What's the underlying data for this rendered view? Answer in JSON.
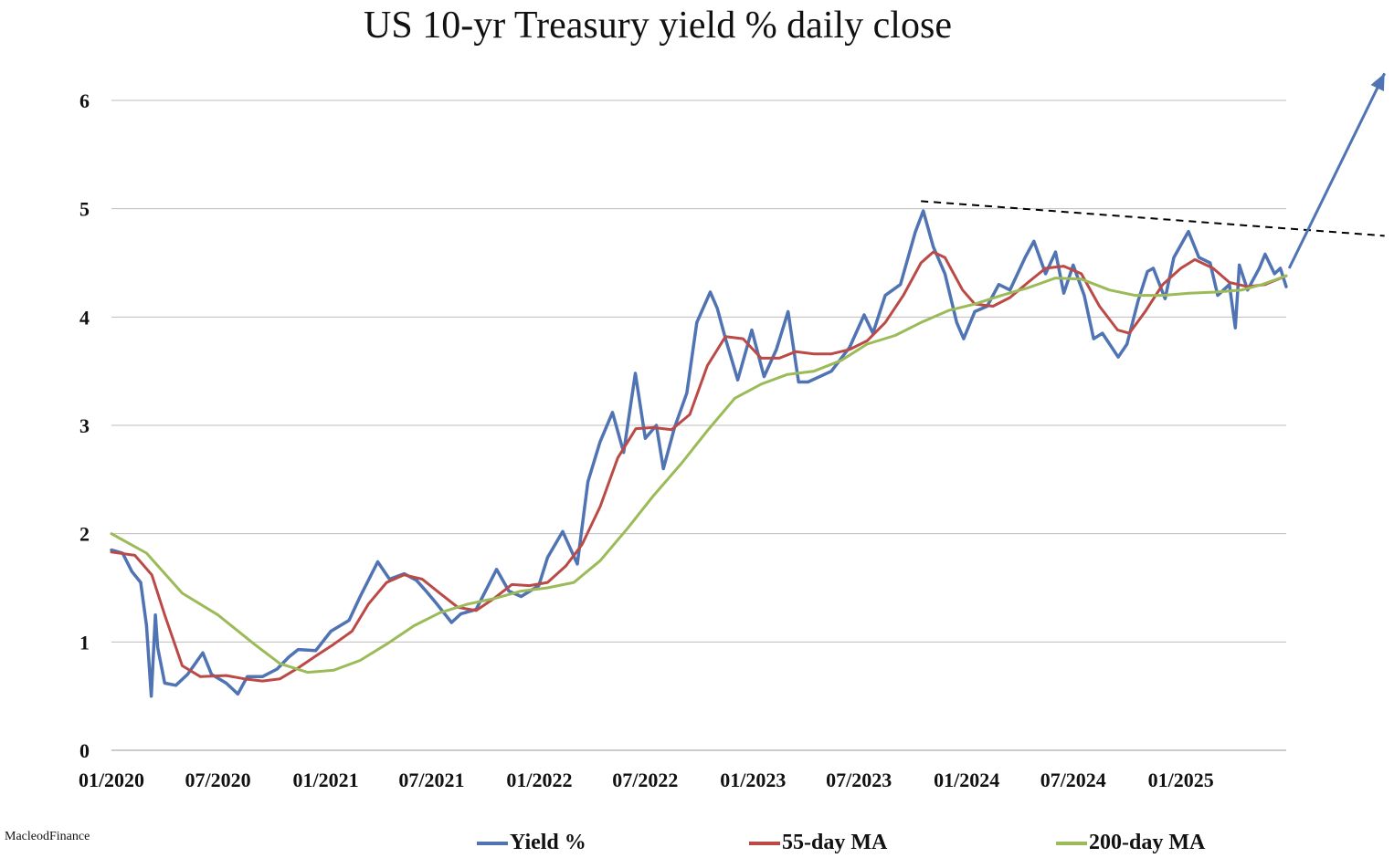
{
  "chart_data": {
    "type": "line",
    "title": "US 10-yr Treasury yield % daily close",
    "xlabel": "",
    "ylabel": "",
    "ylim": [
      0,
      6
    ],
    "yticks": [
      "0",
      "1",
      "2",
      "3",
      "4",
      "5",
      "6"
    ],
    "xticks": [
      "01/2020",
      "07/2020",
      "01/2021",
      "07/2021",
      "01/2022",
      "07/2022",
      "01/2023",
      "07/2023",
      "01/2024",
      "07/2024",
      "01/2025"
    ],
    "xrange": [
      "2020-01-01",
      "2025-06-30"
    ],
    "grid": "horizontal",
    "legend_position": "bottom",
    "credit": "MacleodFinance",
    "series": [
      {
        "name": "Yield %",
        "color": "#4f73b3",
        "points": [
          [
            "2020-01-01",
            1.85
          ],
          [
            "2020-01-20",
            1.82
          ],
          [
            "2020-02-05",
            1.65
          ],
          [
            "2020-02-20",
            1.55
          ],
          [
            "2020-03-01",
            1.15
          ],
          [
            "2020-03-09",
            0.5
          ],
          [
            "2020-03-16",
            1.25
          ],
          [
            "2020-03-20",
            0.95
          ],
          [
            "2020-04-01",
            0.62
          ],
          [
            "2020-04-20",
            0.6
          ],
          [
            "2020-05-10",
            0.7
          ],
          [
            "2020-06-05",
            0.9
          ],
          [
            "2020-06-20",
            0.7
          ],
          [
            "2020-07-15",
            0.62
          ],
          [
            "2020-08-04",
            0.52
          ],
          [
            "2020-08-20",
            0.68
          ],
          [
            "2020-09-15",
            0.68
          ],
          [
            "2020-10-10",
            0.75
          ],
          [
            "2020-10-30",
            0.86
          ],
          [
            "2020-11-15",
            0.93
          ],
          [
            "2020-12-15",
            0.92
          ],
          [
            "2021-01-10",
            1.1
          ],
          [
            "2021-02-10",
            1.2
          ],
          [
            "2021-03-01",
            1.42
          ],
          [
            "2021-03-31",
            1.74
          ],
          [
            "2021-04-20",
            1.58
          ],
          [
            "2021-05-15",
            1.63
          ],
          [
            "2021-06-05",
            1.57
          ],
          [
            "2021-06-20",
            1.48
          ],
          [
            "2021-07-10",
            1.35
          ],
          [
            "2021-08-04",
            1.18
          ],
          [
            "2021-08-20",
            1.26
          ],
          [
            "2021-09-15",
            1.3
          ],
          [
            "2021-10-20",
            1.67
          ],
          [
            "2021-11-10",
            1.47
          ],
          [
            "2021-12-01",
            1.42
          ],
          [
            "2021-12-31",
            1.52
          ],
          [
            "2022-01-15",
            1.78
          ],
          [
            "2022-02-10",
            2.02
          ],
          [
            "2022-03-07",
            1.72
          ],
          [
            "2022-03-25",
            2.48
          ],
          [
            "2022-04-15",
            2.85
          ],
          [
            "2022-05-06",
            3.12
          ],
          [
            "2022-05-25",
            2.75
          ],
          [
            "2022-06-14",
            3.48
          ],
          [
            "2022-07-01",
            2.88
          ],
          [
            "2022-07-20",
            3.0
          ],
          [
            "2022-08-01",
            2.6
          ],
          [
            "2022-08-20",
            2.98
          ],
          [
            "2022-09-10",
            3.3
          ],
          [
            "2022-09-27",
            3.95
          ],
          [
            "2022-10-20",
            4.23
          ],
          [
            "2022-11-01",
            4.08
          ],
          [
            "2022-11-15",
            3.8
          ],
          [
            "2022-12-06",
            3.42
          ],
          [
            "2022-12-30",
            3.88
          ],
          [
            "2023-01-20",
            3.45
          ],
          [
            "2023-02-10",
            3.7
          ],
          [
            "2023-03-02",
            4.05
          ],
          [
            "2023-03-20",
            3.4
          ],
          [
            "2023-04-05",
            3.4
          ],
          [
            "2023-05-15",
            3.5
          ],
          [
            "2023-06-15",
            3.72
          ],
          [
            "2023-07-10",
            4.02
          ],
          [
            "2023-07-25",
            3.85
          ],
          [
            "2023-08-15",
            4.2
          ],
          [
            "2023-09-10",
            4.3
          ],
          [
            "2023-10-05",
            4.78
          ],
          [
            "2023-10-19",
            4.98
          ],
          [
            "2023-11-05",
            4.65
          ],
          [
            "2023-11-25",
            4.4
          ],
          [
            "2023-12-15",
            3.95
          ],
          [
            "2023-12-27",
            3.8
          ],
          [
            "2024-01-15",
            4.05
          ],
          [
            "2024-02-05",
            4.1
          ],
          [
            "2024-02-25",
            4.3
          ],
          [
            "2024-03-15",
            4.25
          ],
          [
            "2024-04-10",
            4.55
          ],
          [
            "2024-04-25",
            4.7
          ],
          [
            "2024-05-15",
            4.4
          ],
          [
            "2024-06-01",
            4.6
          ],
          [
            "2024-06-15",
            4.22
          ],
          [
            "2024-07-01",
            4.48
          ],
          [
            "2024-07-20",
            4.2
          ],
          [
            "2024-08-05",
            3.8
          ],
          [
            "2024-08-20",
            3.85
          ],
          [
            "2024-09-16",
            3.63
          ],
          [
            "2024-10-01",
            3.75
          ],
          [
            "2024-10-20",
            4.15
          ],
          [
            "2024-11-05",
            4.42
          ],
          [
            "2024-11-15",
            4.45
          ],
          [
            "2024-12-05",
            4.17
          ],
          [
            "2024-12-20",
            4.55
          ],
          [
            "2025-01-14",
            4.79
          ],
          [
            "2025-02-01",
            4.55
          ],
          [
            "2025-02-20",
            4.5
          ],
          [
            "2025-03-05",
            4.2
          ],
          [
            "2025-03-25",
            4.3
          ],
          [
            "2025-04-04",
            3.9
          ],
          [
            "2025-04-11",
            4.48
          ],
          [
            "2025-04-25",
            4.25
          ],
          [
            "2025-05-15",
            4.45
          ],
          [
            "2025-05-25",
            4.58
          ],
          [
            "2025-06-10",
            4.4
          ],
          [
            "2025-06-20",
            4.45
          ],
          [
            "2025-06-30",
            4.28
          ]
        ]
      },
      {
        "name": "55-day MA",
        "color": "#bb4a47",
        "points": [
          [
            "2020-01-01",
            1.83
          ],
          [
            "2020-02-10",
            1.8
          ],
          [
            "2020-03-10",
            1.62
          ],
          [
            "2020-04-01",
            1.25
          ],
          [
            "2020-05-01",
            0.78
          ],
          [
            "2020-06-01",
            0.68
          ],
          [
            "2020-07-15",
            0.69
          ],
          [
            "2020-08-15",
            0.66
          ],
          [
            "2020-09-15",
            0.64
          ],
          [
            "2020-10-15",
            0.66
          ],
          [
            "2020-11-15",
            0.76
          ],
          [
            "2020-12-15",
            0.87
          ],
          [
            "2021-01-15",
            0.98
          ],
          [
            "2021-02-15",
            1.1
          ],
          [
            "2021-03-15",
            1.35
          ],
          [
            "2021-04-15",
            1.55
          ],
          [
            "2021-05-15",
            1.62
          ],
          [
            "2021-06-15",
            1.58
          ],
          [
            "2021-07-15",
            1.45
          ],
          [
            "2021-08-15",
            1.32
          ],
          [
            "2021-09-15",
            1.29
          ],
          [
            "2021-10-15",
            1.4
          ],
          [
            "2021-11-15",
            1.53
          ],
          [
            "2021-12-15",
            1.52
          ],
          [
            "2022-01-15",
            1.55
          ],
          [
            "2022-02-15",
            1.7
          ],
          [
            "2022-03-15",
            1.9
          ],
          [
            "2022-04-15",
            2.25
          ],
          [
            "2022-05-15",
            2.7
          ],
          [
            "2022-06-15",
            2.97
          ],
          [
            "2022-07-15",
            2.98
          ],
          [
            "2022-08-15",
            2.96
          ],
          [
            "2022-09-15",
            3.1
          ],
          [
            "2022-10-15",
            3.55
          ],
          [
            "2022-11-15",
            3.82
          ],
          [
            "2022-12-15",
            3.8
          ],
          [
            "2023-01-15",
            3.62
          ],
          [
            "2023-02-15",
            3.62
          ],
          [
            "2023-03-15",
            3.68
          ],
          [
            "2023-04-15",
            3.66
          ],
          [
            "2023-05-15",
            3.66
          ],
          [
            "2023-06-15",
            3.7
          ],
          [
            "2023-07-15",
            3.78
          ],
          [
            "2023-08-15",
            3.95
          ],
          [
            "2023-09-15",
            4.2
          ],
          [
            "2023-10-15",
            4.5
          ],
          [
            "2023-11-05",
            4.6
          ],
          [
            "2023-11-25",
            4.55
          ],
          [
            "2023-12-25",
            4.25
          ],
          [
            "2024-01-15",
            4.12
          ],
          [
            "2024-02-15",
            4.1
          ],
          [
            "2024-03-15",
            4.18
          ],
          [
            "2024-04-15",
            4.32
          ],
          [
            "2024-05-15",
            4.45
          ],
          [
            "2024-06-15",
            4.47
          ],
          [
            "2024-07-15",
            4.4
          ],
          [
            "2024-08-15",
            4.1
          ],
          [
            "2024-09-15",
            3.88
          ],
          [
            "2024-10-05",
            3.85
          ],
          [
            "2024-11-01",
            4.05
          ],
          [
            "2024-12-01",
            4.3
          ],
          [
            "2025-01-01",
            4.45
          ],
          [
            "2025-01-25",
            4.53
          ],
          [
            "2025-02-25",
            4.45
          ],
          [
            "2025-03-25",
            4.32
          ],
          [
            "2025-04-25",
            4.28
          ],
          [
            "2025-05-25",
            4.3
          ],
          [
            "2025-06-30",
            4.38
          ]
        ]
      },
      {
        "name": "200-day MA",
        "color": "#9bbb59",
        "points": [
          [
            "2020-01-01",
            2.0
          ],
          [
            "2020-03-01",
            1.82
          ],
          [
            "2020-05-01",
            1.45
          ],
          [
            "2020-07-01",
            1.25
          ],
          [
            "2020-09-01",
            0.98
          ],
          [
            "2020-10-15",
            0.8
          ],
          [
            "2020-12-01",
            0.72
          ],
          [
            "2021-01-15",
            0.74
          ],
          [
            "2021-03-01",
            0.83
          ],
          [
            "2021-04-15",
            0.98
          ],
          [
            "2021-06-01",
            1.15
          ],
          [
            "2021-07-15",
            1.27
          ],
          [
            "2021-09-01",
            1.35
          ],
          [
            "2021-10-15",
            1.4
          ],
          [
            "2021-12-01",
            1.47
          ],
          [
            "2022-01-15",
            1.5
          ],
          [
            "2022-03-01",
            1.55
          ],
          [
            "2022-04-15",
            1.75
          ],
          [
            "2022-06-01",
            2.05
          ],
          [
            "2022-07-15",
            2.35
          ],
          [
            "2022-09-01",
            2.65
          ],
          [
            "2022-10-15",
            2.95
          ],
          [
            "2022-12-01",
            3.25
          ],
          [
            "2023-01-15",
            3.38
          ],
          [
            "2023-03-01",
            3.47
          ],
          [
            "2023-04-15",
            3.5
          ],
          [
            "2023-06-01",
            3.6
          ],
          [
            "2023-07-15",
            3.75
          ],
          [
            "2023-09-01",
            3.83
          ],
          [
            "2023-10-15",
            3.95
          ],
          [
            "2023-12-01",
            4.06
          ],
          [
            "2024-01-15",
            4.12
          ],
          [
            "2024-03-01",
            4.2
          ],
          [
            "2024-04-15",
            4.27
          ],
          [
            "2024-06-01",
            4.36
          ],
          [
            "2024-07-15",
            4.35
          ],
          [
            "2024-09-01",
            4.25
          ],
          [
            "2024-10-15",
            4.2
          ],
          [
            "2024-12-01",
            4.2
          ],
          [
            "2025-01-15",
            4.22
          ],
          [
            "2025-03-01",
            4.23
          ],
          [
            "2025-04-15",
            4.25
          ],
          [
            "2025-05-20",
            4.3
          ],
          [
            "2025-06-30",
            4.38
          ]
        ]
      }
    ],
    "annotations": {
      "trendline": {
        "style": "dashed",
        "color": "#000000",
        "points": [
          [
            "2023-10-15",
            5.07
          ],
          [
            "2025-12-15",
            4.75
          ]
        ]
      },
      "arrow": {
        "color": "#4f73b3",
        "points": [
          [
            "2025-07-05",
            4.45
          ],
          [
            "2025-12-15",
            6.25
          ]
        ]
      }
    }
  }
}
